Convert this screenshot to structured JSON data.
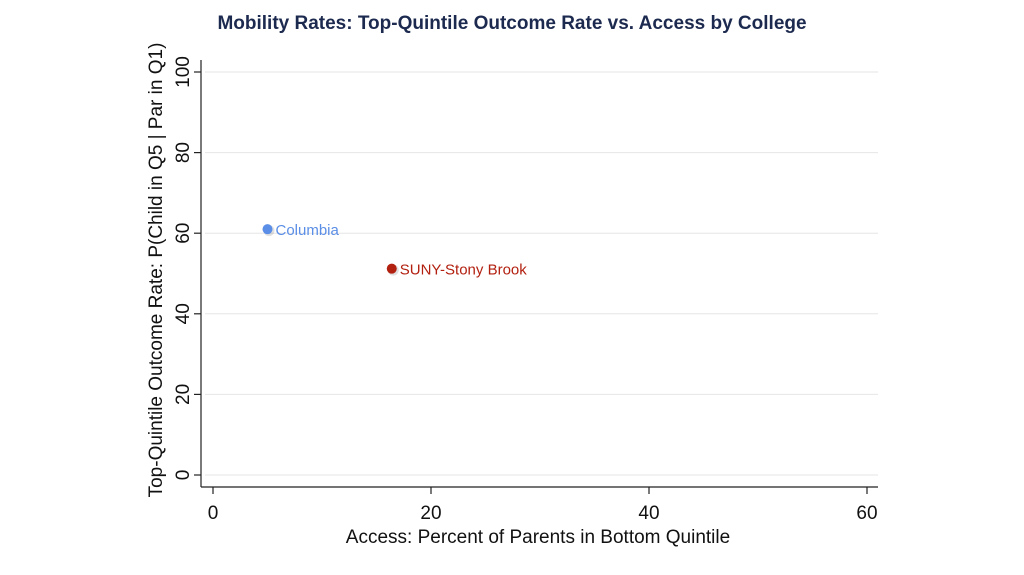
{
  "chart_data": {
    "type": "scatter",
    "title": "Mobility Rates: Top-Quintile Outcome Rate vs. Access by College",
    "xlabel": "Access: Percent of Parents in Bottom Quintile",
    "ylabel": "Top-Quintile Outcome Rate: P(Child in Q5 | Par in Q1)",
    "xlim": [
      0,
      60
    ],
    "ylim": [
      0,
      100
    ],
    "xticks": [
      "0",
      "20",
      "40",
      "60"
    ],
    "yticks": [
      "0",
      "20",
      "40",
      "60",
      "80",
      "100"
    ],
    "grid": true,
    "points": [
      {
        "label": "Columbia",
        "x": 5.0,
        "y": 61.0,
        "color": "#5b8ee6"
      },
      {
        "label": "SUNY-Stony Brook",
        "x": 16.4,
        "y": 51.2,
        "color": "#b22010"
      }
    ]
  }
}
